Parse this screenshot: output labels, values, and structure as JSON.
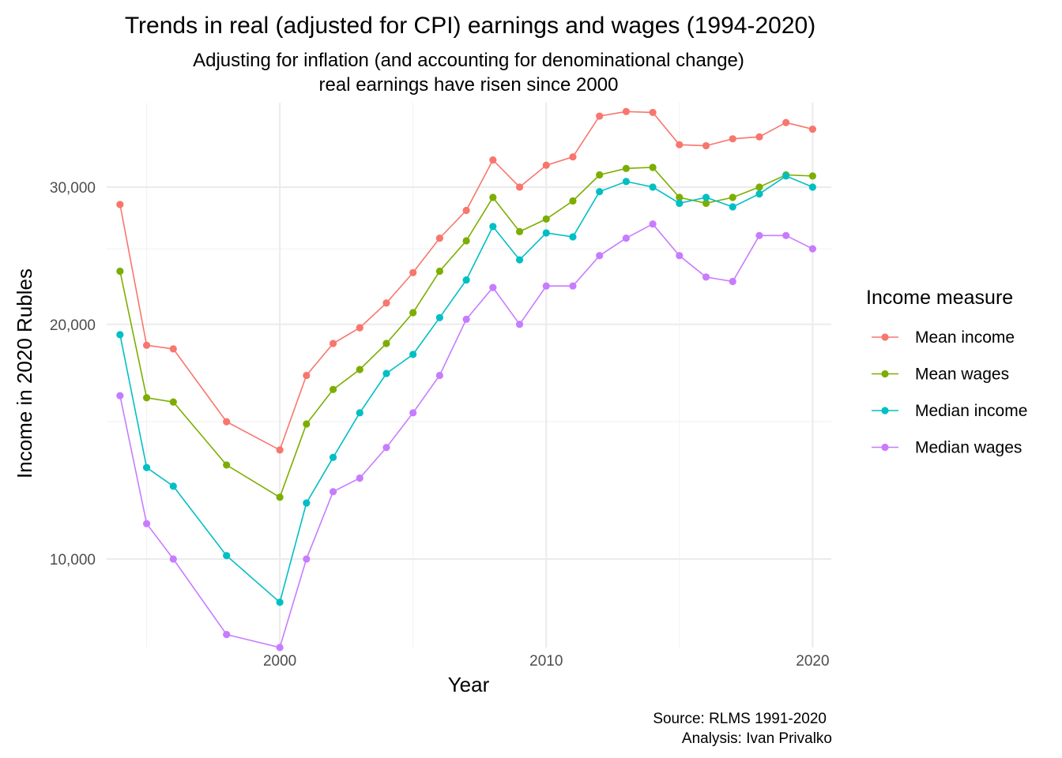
{
  "chart_data": {
    "type": "line",
    "title": "Trends in real (adjusted for CPI) earnings and wages (1994-2020)",
    "subtitle": [
      "Adjusting for inflation (and accounting for denominational change)",
      "real earnings have risen since 2000"
    ],
    "xlabel": "Year",
    "ylabel": "Income in 2020 Rubles",
    "y_scale": "log",
    "xlim": [
      1993.5,
      2020.7
    ],
    "ylim": [
      7700,
      38500
    ],
    "x_ticks": [
      2000,
      2010,
      2020
    ],
    "x_tick_labels": [
      "2000",
      "2010",
      "2020"
    ],
    "x_minor_ticks": [
      1995,
      2005,
      2015
    ],
    "y_ticks": [
      10000,
      20000,
      30000
    ],
    "y_tick_labels": [
      "10,000",
      "20,000",
      "30,000"
    ],
    "y_minor_ticks": [
      15000,
      25000
    ],
    "legend": {
      "title": "Income measure",
      "position": "right"
    },
    "caption": [
      "Source: RLMS 1991-2020",
      "Analysis: Ivan Privalko"
    ],
    "x": [
      1994,
      1995,
      1996,
      1998,
      2000,
      2001,
      2002,
      2003,
      2004,
      2005,
      2006,
      2007,
      2008,
      2009,
      2010,
      2011,
      2012,
      2013,
      2014,
      2015,
      2016,
      2017,
      2018,
      2019,
      2020
    ],
    "series": [
      {
        "name": "Mean income",
        "color": "#F8766D",
        "values": [
          28500,
          18800,
          18600,
          15000,
          13800,
          17200,
          18900,
          19800,
          21300,
          23300,
          25800,
          28000,
          32500,
          30000,
          32000,
          32800,
          37000,
          37500,
          37400,
          34000,
          33900,
          34600,
          34800,
          36300,
          35600
        ]
      },
      {
        "name": "Mean wages",
        "color": "#7CAE00",
        "values": [
          23400,
          16100,
          15900,
          13200,
          12000,
          14900,
          16500,
          17500,
          18900,
          20700,
          23400,
          25600,
          29100,
          26300,
          27300,
          28800,
          31100,
          31700,
          31800,
          29100,
          28600,
          29100,
          30000,
          31100,
          31000
        ]
      },
      {
        "name": "Median income",
        "color": "#00BFC4",
        "values": [
          19400,
          13100,
          12400,
          10100,
          8800,
          11800,
          13500,
          15400,
          17300,
          18300,
          20400,
          22800,
          26700,
          24200,
          26200,
          25900,
          29600,
          30500,
          30000,
          28600,
          29100,
          28300,
          29400,
          31000,
          30000
        ]
      },
      {
        "name": "Median wages",
        "color": "#C77CFF",
        "values": [
          16200,
          11100,
          10000,
          8000,
          7700,
          10000,
          12200,
          12700,
          13900,
          15400,
          17200,
          20300,
          22300,
          20000,
          22400,
          22400,
          24500,
          25800,
          26900,
          24500,
          23000,
          22700,
          26000,
          26000,
          25000
        ]
      }
    ]
  }
}
